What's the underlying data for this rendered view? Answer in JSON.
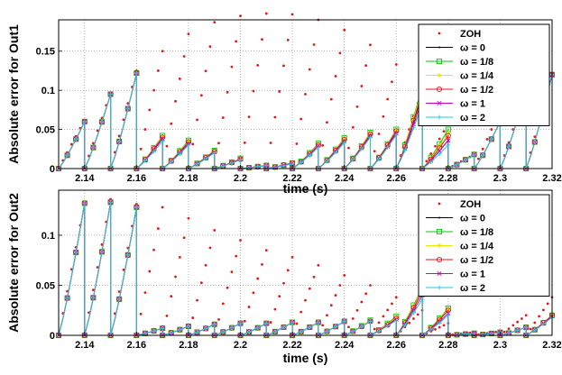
{
  "chart_data": [
    {
      "type": "line",
      "xlabel": "time (s)",
      "ylabel": "Absolute error for Out1",
      "xlim": [
        2.13,
        2.32
      ],
      "ylim": [
        0,
        0.19
      ],
      "xticks": [
        "2.14",
        "2.16",
        "2.18",
        "2.2",
        "2.22",
        "2.24",
        "2.26",
        "2.28",
        "2.3",
        "2.32"
      ],
      "yticks": [
        "0",
        "0.05",
        "0.1",
        "0.15"
      ],
      "legend_position": "top-right",
      "grid": true,
      "segment_start": [
        2.13,
        2.14,
        2.15,
        2.16,
        2.17,
        2.18,
        2.19,
        2.2,
        2.21,
        2.22,
        2.23,
        2.24,
        2.25,
        2.26,
        2.27,
        2.28,
        2.29,
        2.3,
        2.31
      ],
      "series": [
        {
          "name": "ZOH",
          "marker": "dot",
          "color": "#e8161b",
          "peaks": [
            0.062,
            0.097,
            0.125,
            0.15,
            0.172,
            0.187,
            0.195,
            0.198,
            0.197,
            0.19,
            0.177,
            0.158,
            0.133,
            0.1,
            0.057,
            0.018,
            0.075,
            0.1,
            0.122
          ]
        },
        {
          "name": "ω = 0",
          "marker": "point",
          "color": "#000000",
          "peaks": [
            0.06,
            0.095,
            0.122,
            0.038,
            0.032,
            0.021,
            0.012,
            0.004,
            0.007,
            0.03,
            0.036,
            0.043,
            0.046,
            0.096,
            0.036,
            0.018,
            0.06,
            0.1,
            0.12
          ]
        },
        {
          "name": "ω = 1/8",
          "marker": "square",
          "color": "#00cc00",
          "peaks": [
            0.06,
            0.095,
            0.122,
            0.042,
            0.036,
            0.023,
            0.013,
            0.004,
            0.007,
            0.032,
            0.039,
            0.046,
            0.05,
            0.105,
            0.05,
            0.018,
            0.06,
            0.1,
            0.12
          ]
        },
        {
          "name": "ω = 1/4",
          "marker": "star",
          "color": "#e8e800",
          "peaks": [
            0.06,
            0.095,
            0.122,
            0.041,
            0.035,
            0.022,
            0.013,
            0.004,
            0.007,
            0.031,
            0.038,
            0.045,
            0.049,
            0.102,
            0.046,
            0.018,
            0.06,
            0.1,
            0.12
          ]
        },
        {
          "name": "ω = 1/2",
          "marker": "circle",
          "color": "#e8161b",
          "peaks": [
            0.06,
            0.095,
            0.122,
            0.04,
            0.034,
            0.022,
            0.012,
            0.004,
            0.007,
            0.03,
            0.037,
            0.044,
            0.048,
            0.098,
            0.042,
            0.018,
            0.06,
            0.1,
            0.12
          ]
        },
        {
          "name": "ω = 1",
          "marker": "x",
          "color": "#cc00cc",
          "peaks": [
            0.06,
            0.095,
            0.122,
            0.038,
            0.032,
            0.021,
            0.012,
            0.004,
            0.007,
            0.029,
            0.035,
            0.042,
            0.045,
            0.09,
            0.036,
            0.018,
            0.06,
            0.1,
            0.12
          ]
        },
        {
          "name": "ω = 2",
          "marker": "plus",
          "color": "#22c8d8",
          "peaks": [
            0.06,
            0.095,
            0.122,
            0.035,
            0.03,
            0.02,
            0.011,
            0.004,
            0.006,
            0.027,
            0.033,
            0.04,
            0.043,
            0.083,
            0.03,
            0.018,
            0.06,
            0.1,
            0.12
          ]
        }
      ]
    },
    {
      "type": "line",
      "xlabel": "time (s)",
      "ylabel": "Absolute error for Out2",
      "xlim": [
        2.13,
        2.32
      ],
      "ylim": [
        0,
        0.145
      ],
      "xticks": [
        "2.14",
        "2.16",
        "2.18",
        "2.2",
        "2.22",
        "2.24",
        "2.26",
        "2.28",
        "2.3",
        "2.32"
      ],
      "yticks": [
        "0",
        "0.05",
        "0.1"
      ],
      "legend_position": "top-right",
      "grid": true,
      "segment_start": [
        2.13,
        2.14,
        2.15,
        2.16,
        2.17,
        2.18,
        2.19,
        2.2,
        2.21,
        2.22,
        2.23,
        2.24,
        2.25,
        2.26,
        2.27,
        2.28,
        2.29,
        2.3,
        2.31
      ],
      "series": [
        {
          "name": "ZOH",
          "marker": "dot",
          "color": "#e8161b",
          "peaks": [
            0.132,
            0.136,
            0.131,
            0.128,
            0.117,
            0.105,
            0.095,
            0.085,
            0.078,
            0.07,
            0.06,
            0.05,
            0.038,
            0.025,
            0.012,
            0.003,
            0.004,
            0.02,
            0.038
          ]
        },
        {
          "name": "ω = 0",
          "marker": "point",
          "color": "#000000",
          "peaks": [
            0.132,
            0.133,
            0.128,
            0.007,
            0.009,
            0.011,
            0.012,
            0.012,
            0.013,
            0.013,
            0.014,
            0.014,
            0.017,
            0.044,
            0.025,
            0.002,
            0.003,
            0.008,
            0.02
          ]
        },
        {
          "name": "ω = 1/8",
          "marker": "square",
          "color": "#00cc00",
          "peaks": [
            0.132,
            0.133,
            0.128,
            0.007,
            0.009,
            0.011,
            0.012,
            0.012,
            0.013,
            0.013,
            0.014,
            0.015,
            0.019,
            0.048,
            0.027,
            0.002,
            0.003,
            0.008,
            0.02
          ]
        },
        {
          "name": "ω = 1/4",
          "marker": "star",
          "color": "#e8e800",
          "peaks": [
            0.132,
            0.133,
            0.128,
            0.007,
            0.009,
            0.011,
            0.012,
            0.012,
            0.013,
            0.013,
            0.014,
            0.015,
            0.018,
            0.046,
            0.026,
            0.002,
            0.003,
            0.008,
            0.02
          ]
        },
        {
          "name": "ω = 1/2",
          "marker": "circle",
          "color": "#e8161b",
          "peaks": [
            0.132,
            0.133,
            0.128,
            0.007,
            0.009,
            0.011,
            0.012,
            0.012,
            0.013,
            0.013,
            0.014,
            0.014,
            0.017,
            0.044,
            0.025,
            0.002,
            0.003,
            0.008,
            0.02
          ]
        },
        {
          "name": "ω = 1",
          "marker": "x",
          "color": "#cc00cc",
          "peaks": [
            0.132,
            0.133,
            0.128,
            0.007,
            0.009,
            0.011,
            0.012,
            0.012,
            0.013,
            0.013,
            0.014,
            0.014,
            0.016,
            0.04,
            0.022,
            0.002,
            0.003,
            0.008,
            0.019
          ]
        },
        {
          "name": "ω = 2",
          "marker": "plus",
          "color": "#22c8d8",
          "peaks": [
            0.132,
            0.133,
            0.128,
            0.007,
            0.009,
            0.011,
            0.012,
            0.012,
            0.013,
            0.013,
            0.014,
            0.014,
            0.015,
            0.036,
            0.02,
            0.002,
            0.003,
            0.008,
            0.018
          ]
        }
      ]
    }
  ]
}
